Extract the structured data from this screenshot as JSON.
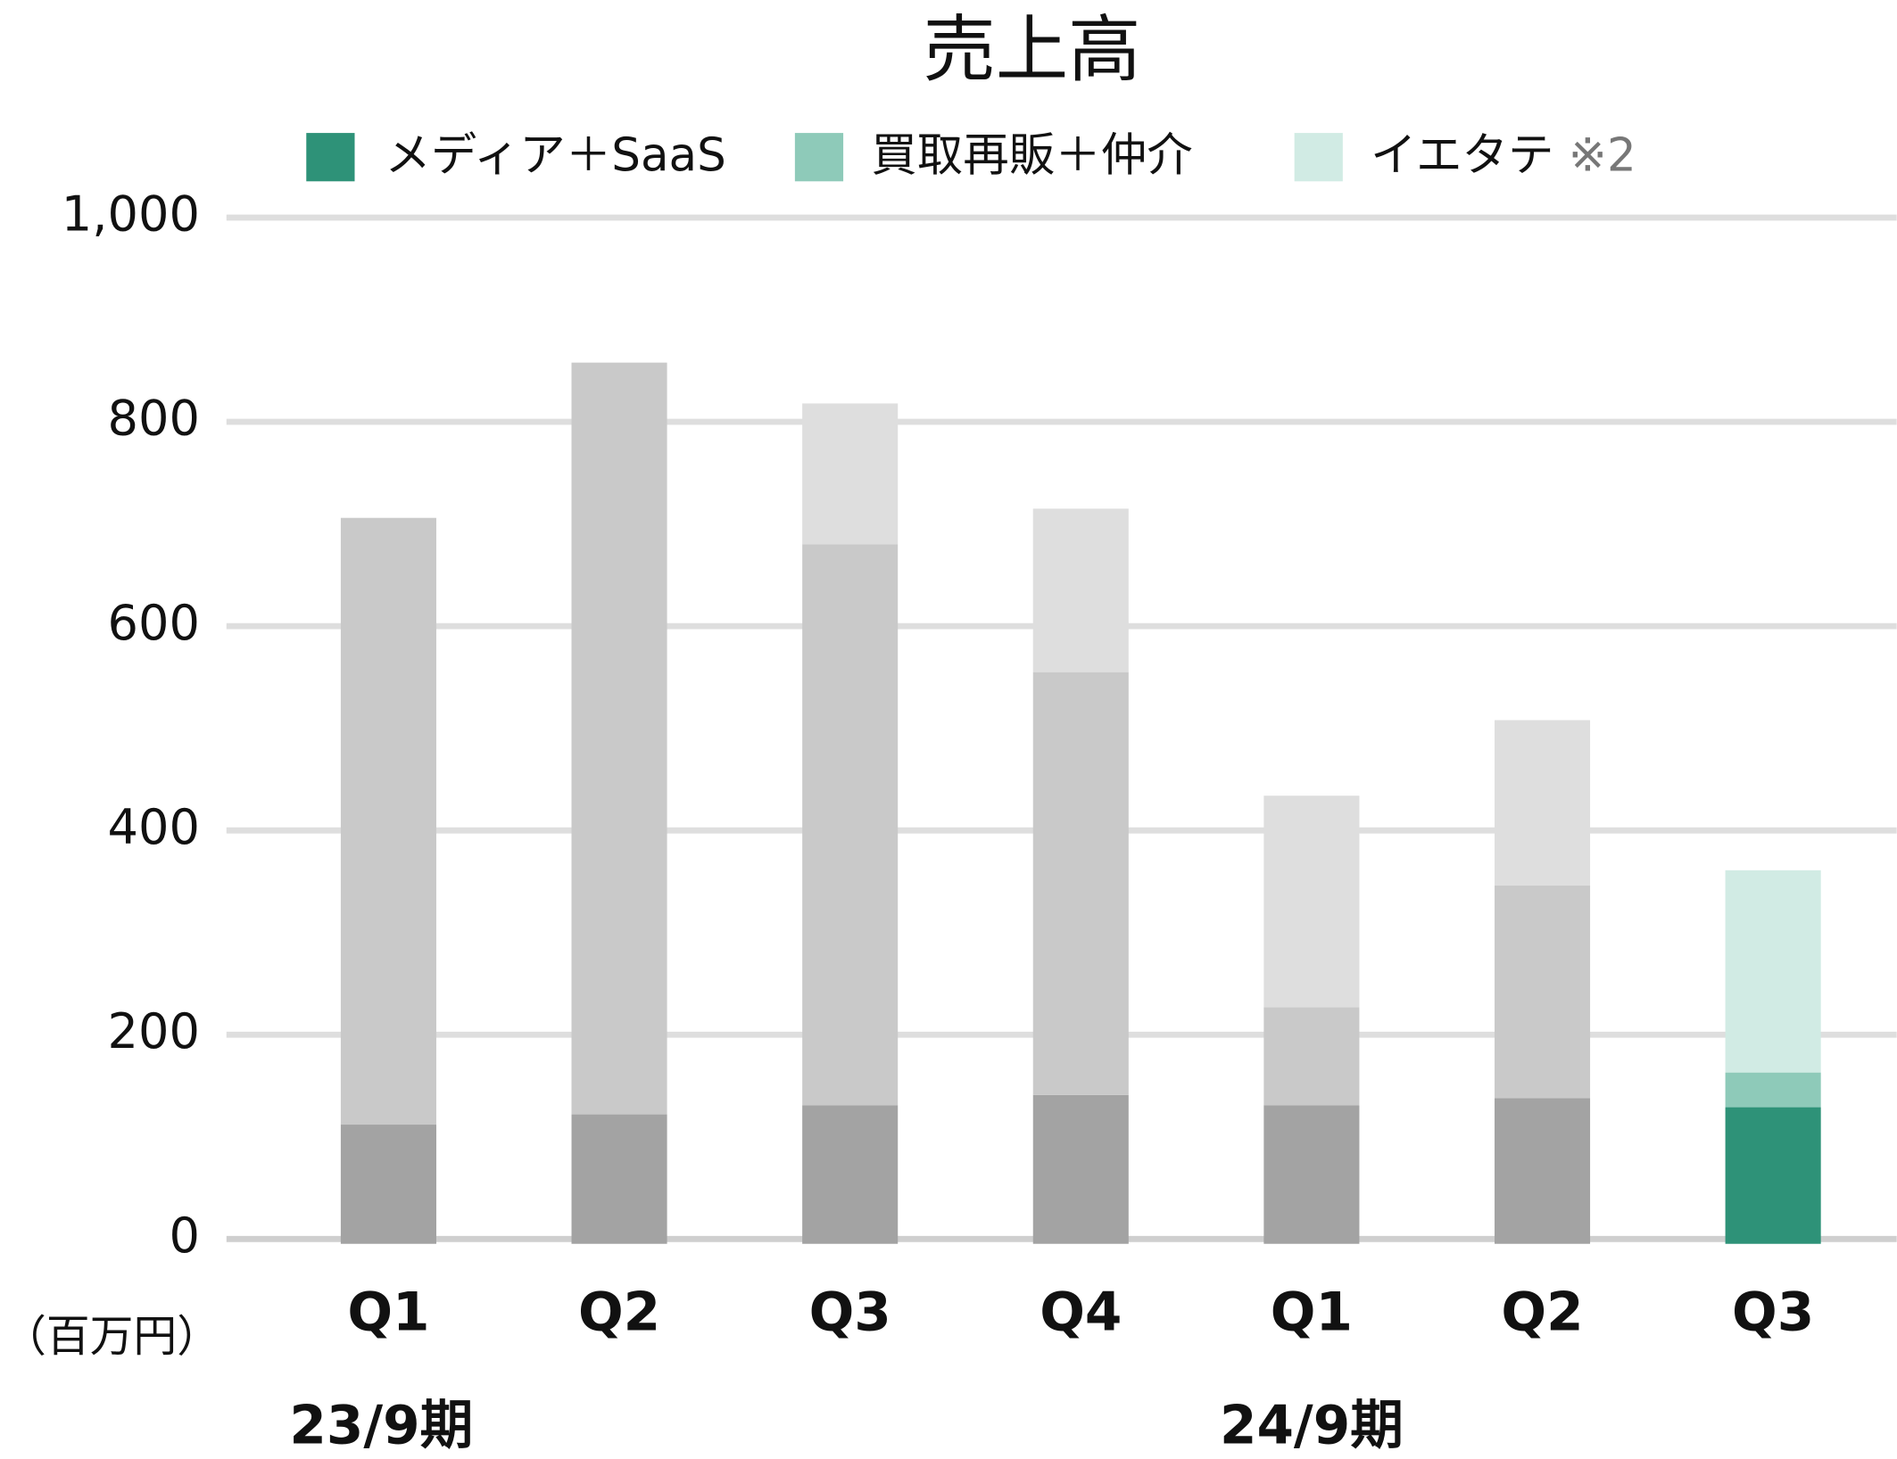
{
  "chart_data": {
    "type": "stacked_bar",
    "title": "売上高",
    "y_unit_label": "（百万円）",
    "categories": [
      "Q1",
      "Q2",
      "Q3",
      "Q4",
      "Q1",
      "Q2",
      "Q3"
    ],
    "groups": [
      {
        "label": "23/9期",
        "start": 0,
        "end": 3
      },
      {
        "label": "24/9期",
        "start": 4,
        "end": 6
      }
    ],
    "series": [
      {
        "name": "メディア＋SaaS",
        "color": "#2e9278",
        "point_colors": [
          "#a3a3a3",
          "#a3a3a3",
          "#a3a3a3",
          "#a3a3a3",
          "#a3a3a3",
          "#a3a3a3",
          "#2e9278"
        ],
        "values": [
          112,
          122,
          131,
          141,
          131,
          138,
          129
        ]
      },
      {
        "name": "買取再販＋仲介",
        "color": "#8ecab9",
        "point_colors": [
          "#c9c9c9",
          "#c9c9c9",
          "#c9c9c9",
          "#c9c9c9",
          "#c9c9c9",
          "#c9c9c9",
          "#8ecab9"
        ],
        "values": [
          594,
          736,
          549,
          414,
          96,
          208,
          34
        ]
      },
      {
        "name": "イエタテ",
        "name_note": "※2",
        "color": "#d1ebe4",
        "point_colors": [
          "#dedede",
          "#dedede",
          "#dedede",
          "#dedede",
          "#dedede",
          "#dedede",
          "#d1ebe4"
        ],
        "values": [
          null,
          null,
          138,
          160,
          207,
          162,
          198
        ]
      }
    ],
    "ylim": [
      0,
      1000
    ],
    "yticks": [
      0,
      200,
      400,
      600,
      800,
      {
        "value": 1000,
        "label": "1,000"
      }
    ],
    "grid": true,
    "legend": "top"
  }
}
